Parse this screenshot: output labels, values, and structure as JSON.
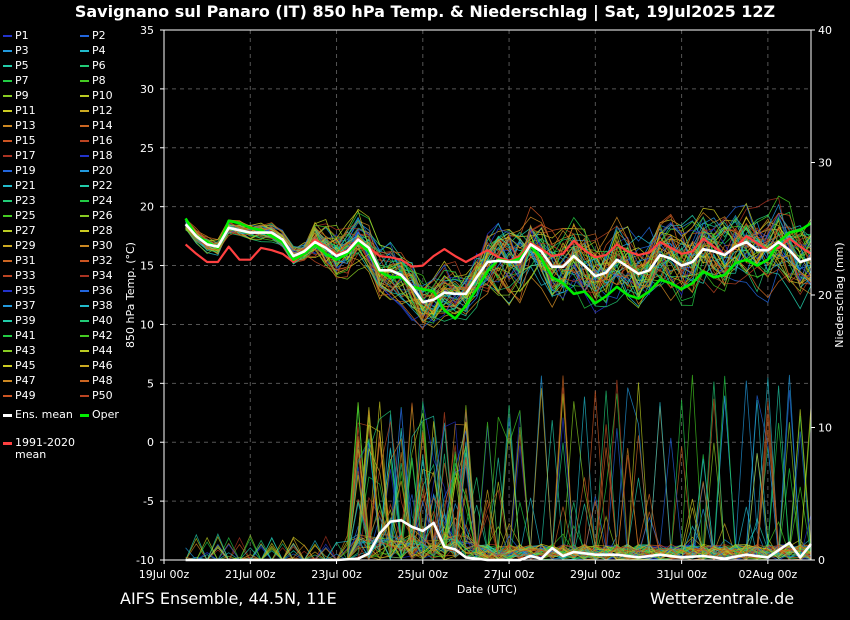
{
  "title": "Savignano sul Panaro  (IT)  850 hPa Temp. & Niederschlag | Sat, 19Jul2025 12Z",
  "footer": {
    "model": "AIFS Ensemble, 44.5N, 11E",
    "source": "Wetterzentrale.de"
  },
  "legend": {
    "members": [
      "P1",
      "P2",
      "P3",
      "P4",
      "P5",
      "P6",
      "P7",
      "P8",
      "P9",
      "P10",
      "P11",
      "P12",
      "P13",
      "P14",
      "P15",
      "P16",
      "P17",
      "P18",
      "P19",
      "P20",
      "P21",
      "P22",
      "P23",
      "P24",
      "P25",
      "P26",
      "P27",
      "P28",
      "P29",
      "P30",
      "P31",
      "P32",
      "P33",
      "P34",
      "P35",
      "P36",
      "P37",
      "P38",
      "P39",
      "P40",
      "P41",
      "P42",
      "P43",
      "P44",
      "P45",
      "P46",
      "P47",
      "P48",
      "P49",
      "P50"
    ],
    "member_colors": [
      "#2233cc",
      "#2266dd",
      "#2299dd",
      "#22bbcc",
      "#22ccaa",
      "#22cc77",
      "#22cc44",
      "#44cc22",
      "#88cc22",
      "#bbcc22",
      "#cccc22",
      "#ccaa22",
      "#cc8822",
      "#cc6622",
      "#cc5522",
      "#bb4422",
      "#aa3322"
    ],
    "ens_mean": "Ens. mean",
    "oper": "Oper",
    "climate_line1": "1991-2020",
    "climate_line2": "mean",
    "ens_mean_color": "#ffffff",
    "oper_color": "#00ee00",
    "climate_color": "#ff4040"
  },
  "chart_data": {
    "type": "line",
    "xlabel": "Date (UTC)",
    "ylabel_left": "850 hPa Temp. (°C)",
    "ylabel_right": "Niederschlag (mm)",
    "ylim_left": [
      -10,
      35
    ],
    "ylim_right": [
      0,
      40
    ],
    "yticks_left": [
      -10,
      -5,
      0,
      5,
      10,
      15,
      20,
      25,
      30,
      35
    ],
    "yticks_right": [
      0,
      10,
      20,
      30,
      40
    ],
    "x_range_hours": [
      0,
      360
    ],
    "x_tick_labels": [
      "19Jul 00z",
      "21Jul 00z",
      "23Jul 00z",
      "25Jul 00z",
      "27Jul 00z",
      "29Jul 00z",
      "31Jul 00z",
      "02Aug 00z"
    ],
    "grid": true,
    "series": [
      {
        "name": "Ens. mean",
        "x": [
          12,
          18,
          24,
          30,
          36,
          42,
          48,
          54,
          60,
          66,
          72,
          78,
          84,
          90,
          96,
          102,
          108,
          114,
          120,
          126,
          132,
          138,
          144,
          150,
          156,
          162,
          168,
          174,
          180,
          186,
          192,
          198,
          204,
          210,
          216,
          222,
          228,
          234,
          240,
          246,
          252,
          258,
          264,
          270,
          276,
          282,
          288,
          294,
          300,
          306,
          312,
          318,
          324,
          330,
          336,
          342,
          348,
          354,
          360
        ],
        "values": [
          18.5,
          17.5,
          16.8,
          16.6,
          18.2,
          18.0,
          17.8,
          17.8,
          17.8,
          17.2,
          15.8,
          16.2,
          17.0,
          16.5,
          15.8,
          16.2,
          17.2,
          16.5,
          14.6,
          14.6,
          14.2,
          13.2,
          11.9,
          12.1,
          12.7,
          12.6,
          12.6,
          14.0,
          15.3,
          15.4,
          15.3,
          15.3,
          16.8,
          16.2,
          14.9,
          14.9,
          15.8,
          15.0,
          14.1,
          14.4,
          15.5,
          14.9,
          14.3,
          14.6,
          15.9,
          15.6,
          15.0,
          15.3,
          16.4,
          16.2,
          15.9,
          16.6,
          17.0,
          16.3,
          16.3,
          17.0,
          16.3,
          15.3,
          15.6
        ]
      },
      {
        "name": "Oper",
        "x": [
          12,
          18,
          24,
          30,
          36,
          42,
          48,
          54,
          60,
          66,
          72,
          78,
          84,
          90,
          96,
          102,
          108,
          114,
          120,
          126,
          132,
          138,
          144,
          150,
          156,
          162,
          168,
          174,
          180,
          186,
          192,
          198,
          204,
          210,
          216,
          222,
          228,
          234,
          240,
          246,
          252,
          258,
          264,
          270,
          276,
          282,
          288,
          294,
          300,
          306,
          312,
          318,
          324,
          330,
          336,
          342,
          348,
          354,
          360
        ],
        "values": [
          19.0,
          17.5,
          17.0,
          16.5,
          18.8,
          18.6,
          18.2,
          18.0,
          17.5,
          17.0,
          15.5,
          16.0,
          16.8,
          16.0,
          15.5,
          16.0,
          17.0,
          16.2,
          14.5,
          14.0,
          14.0,
          13.2,
          13.0,
          12.8,
          11.2,
          10.5,
          11.6,
          13.0,
          14.5,
          15.5,
          15.3,
          15.6,
          16.7,
          15.6,
          14.0,
          13.5,
          12.6,
          12.8,
          11.8,
          12.4,
          13.2,
          12.5,
          12.2,
          12.8,
          13.8,
          13.5,
          13.0,
          13.5,
          14.5,
          14.0,
          14.2,
          15.2,
          15.5,
          15.0,
          15.5,
          17.0,
          17.8,
          18.0,
          18.6
        ]
      },
      {
        "name": "1991-2020 mean",
        "x": [
          12,
          18,
          24,
          30,
          36,
          42,
          48,
          54,
          60,
          66,
          72,
          78,
          84,
          90,
          96,
          102,
          108,
          114,
          120,
          126,
          132,
          138,
          144,
          150,
          156,
          162,
          168,
          174,
          180,
          186,
          192,
          198,
          204,
          210,
          216,
          222,
          228,
          234,
          240,
          246,
          252,
          258,
          264,
          270,
          276,
          282,
          288,
          294,
          300,
          306,
          312,
          318,
          324,
          330,
          336,
          342,
          348,
          354,
          360
        ],
        "values": [
          16.8,
          16.0,
          15.3,
          15.3,
          16.6,
          15.5,
          15.5,
          16.5,
          16.3,
          16.0,
          15.3,
          16.2,
          17.2,
          16.6,
          15.9,
          16.3,
          17.3,
          16.5,
          15.8,
          15.7,
          15.5,
          14.9,
          15.0,
          15.8,
          16.4,
          15.8,
          15.3,
          15.8,
          16.3,
          15.7,
          15.4,
          15.8,
          16.9,
          16.4,
          15.8,
          16.0,
          17.1,
          16.3,
          15.7,
          15.9,
          16.8,
          16.2,
          15.9,
          16.1,
          17.0,
          16.5,
          16.0,
          16.2,
          17.3,
          16.6,
          15.9,
          16.5,
          17.5,
          16.9,
          16.3,
          16.5,
          17.3,
          16.6,
          16.0
        ]
      },
      {
        "name": "Ens. mean precipitation",
        "x": [
          12,
          24,
          36,
          48,
          60,
          72,
          84,
          96,
          108,
          114,
          120,
          126,
          132,
          138,
          144,
          150,
          156,
          162,
          168,
          174,
          180,
          186,
          192,
          198,
          204,
          210,
          216,
          222,
          228,
          240,
          252,
          264,
          276,
          288,
          300,
          312,
          324,
          336,
          348,
          354,
          360
        ],
        "values": [
          0,
          0,
          0,
          0,
          0,
          0,
          0,
          0,
          0.1,
          0.5,
          2.0,
          2.9,
          3.0,
          2.5,
          2.2,
          2.8,
          1.0,
          0.8,
          0.2,
          0.1,
          0,
          0,
          0,
          0,
          0.3,
          0.1,
          0.9,
          0.3,
          0.6,
          0.4,
          0.4,
          0.2,
          0.4,
          0.2,
          0.3,
          0.1,
          0.4,
          0.2,
          1.3,
          0.2,
          1.2
        ]
      }
    ]
  }
}
